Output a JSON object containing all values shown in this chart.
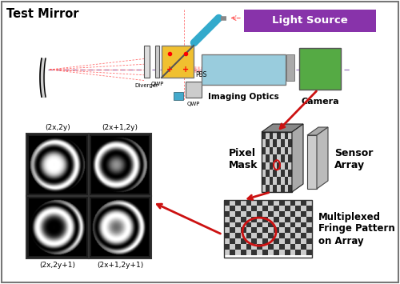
{
  "bg_color": "#ffffff",
  "border_color": "#777777",
  "light_source_color": "#8833aa",
  "light_source_text": "Light Source",
  "light_source_text_color": "#ffffff",
  "camera_color": "#55aa44",
  "imaging_optics_color": "#99ccdd",
  "pbs_color": "#f0c030",
  "mirror_teal_color": "#33aacc",
  "test_mirror_text": "Test Mirror",
  "imaging_optics_text": "Imaging Optics",
  "camera_text": "Camera",
  "pixel_mask_text": "Pixel\nMask",
  "sensor_array_text": "Sensor\nArray",
  "multiplexed_text": "Multiplexed\nFringe Pattern\non Array",
  "label_2x2y": "(2x,2y)",
  "label_2x12y": "(2x+1,2y)",
  "label_2x2y1": "(2x,2y+1)",
  "label_2x12y1": "(2x+1,2y+1)",
  "qwp_label": "QWP",
  "pbs_label": "PBS",
  "diverger_label": "Diverger",
  "red_color": "#cc1111",
  "beam_red": "#ff5555",
  "beam_purple": "#9977bb"
}
